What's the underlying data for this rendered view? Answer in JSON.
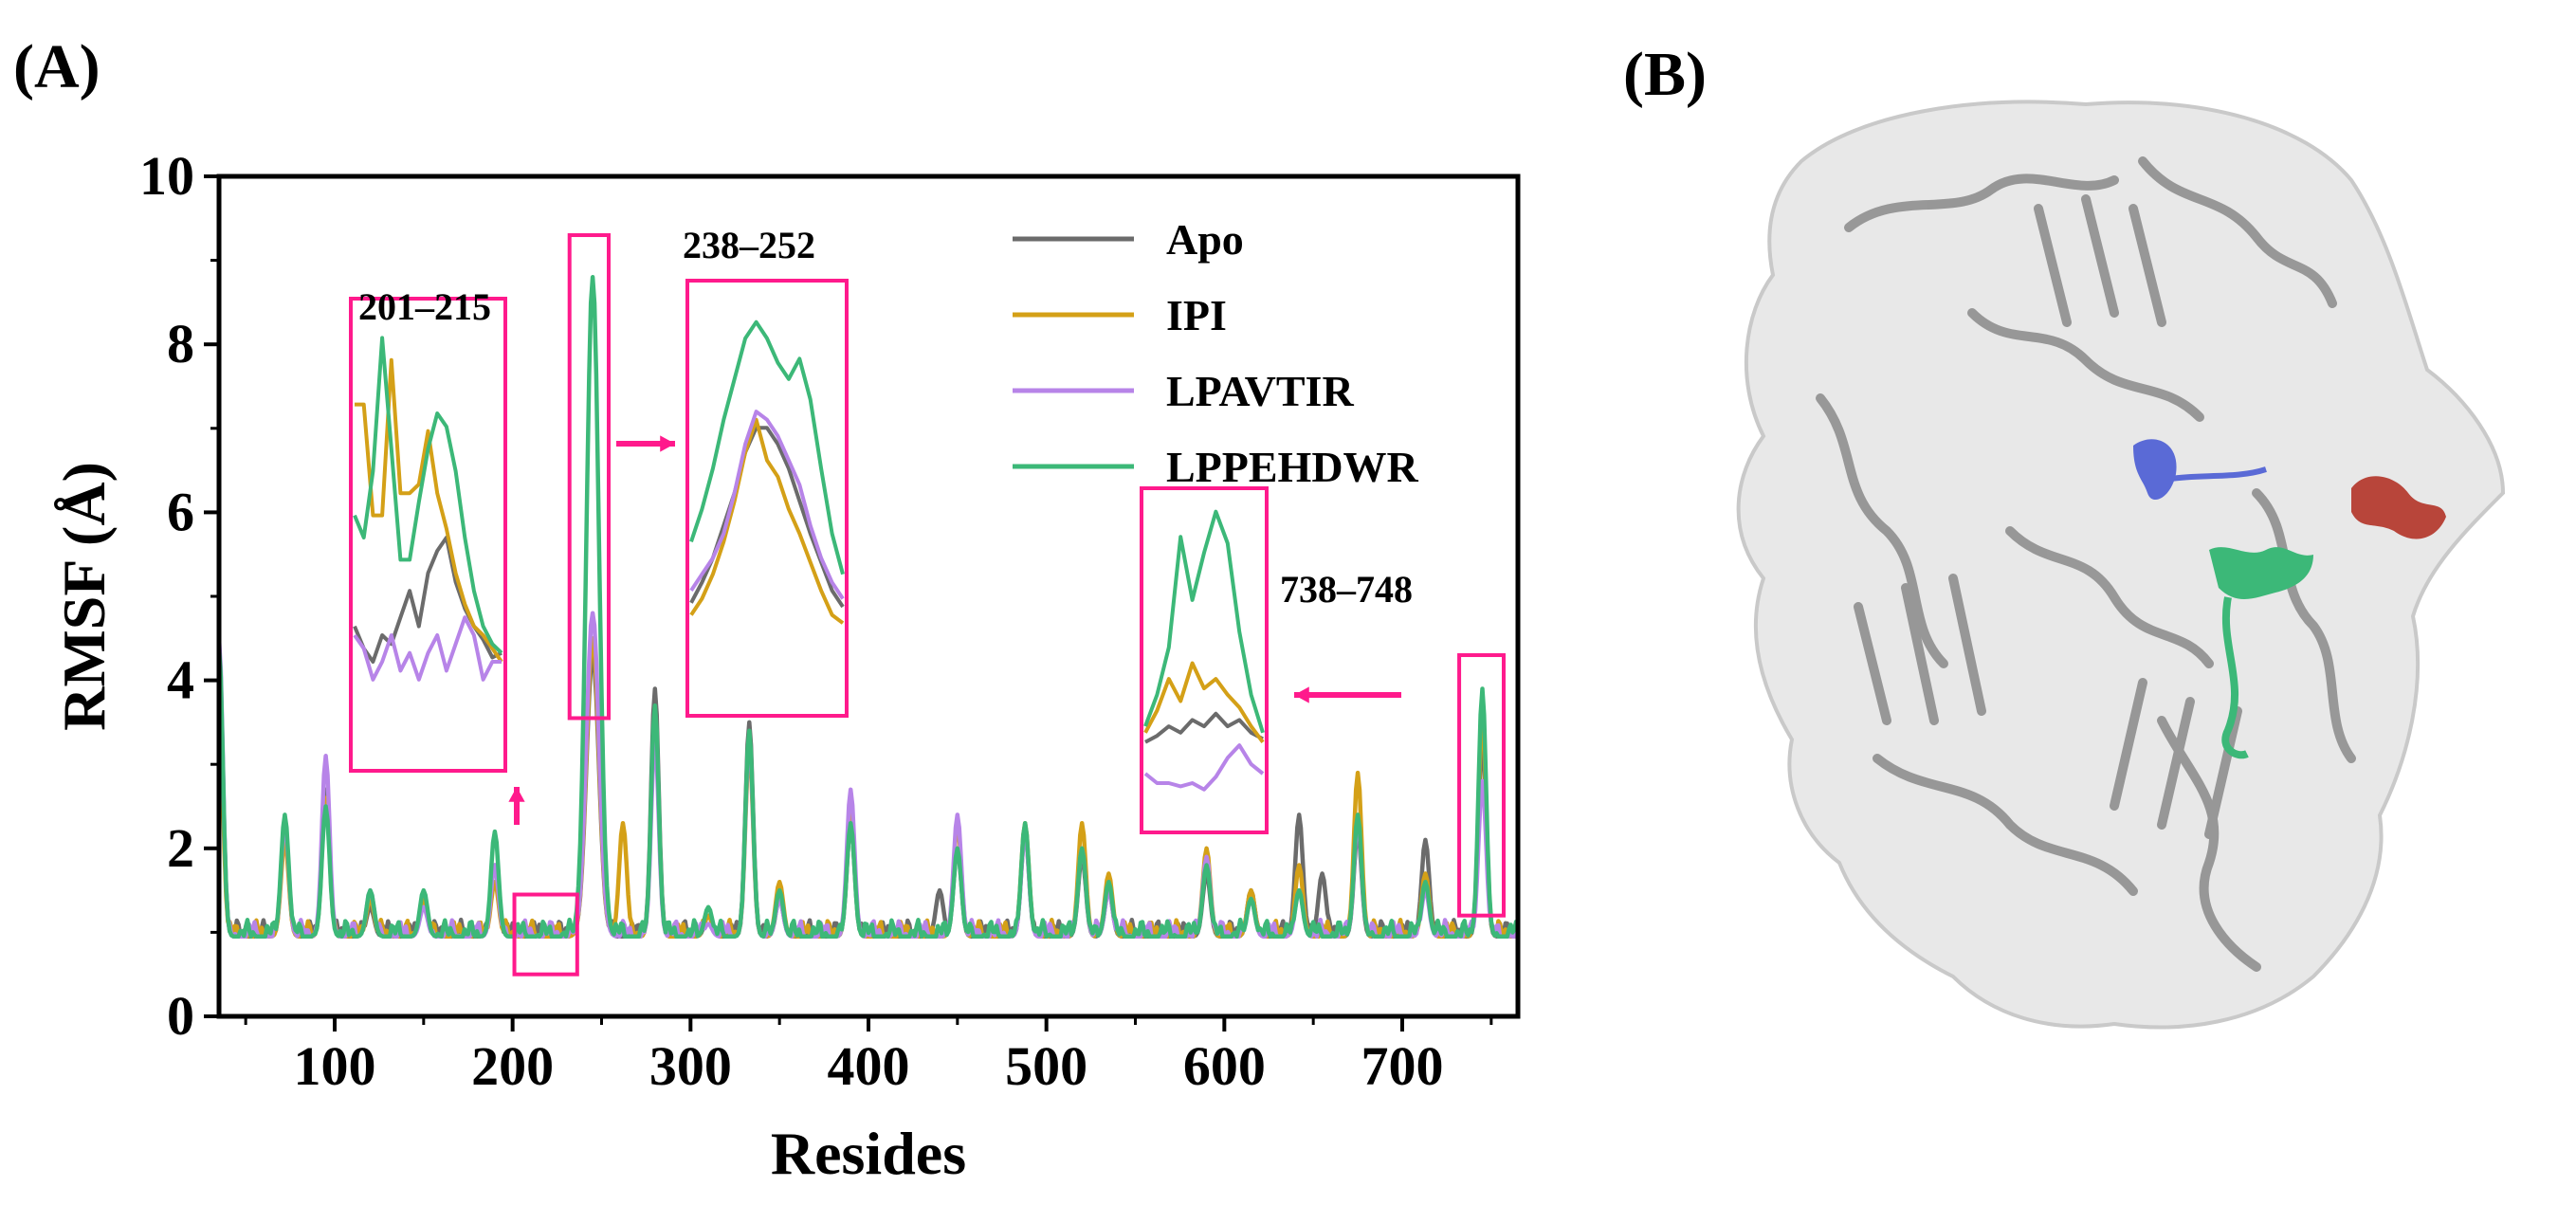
{
  "panels": {
    "a_label": "(A)",
    "b_label": "(B)"
  },
  "colors": {
    "Apo": "#6b6b6b",
    "IPI": "#d4a017",
    "LPAVTIR": "#b784e8",
    "LPPEHDWR": "#3cb878",
    "highlight": "#ff1a8c",
    "protein_region_blue": "#5a6ad6",
    "protein_region_green": "#3cb878",
    "protein_region_red": "#b8453a"
  },
  "chart_data": {
    "type": "line",
    "title": "",
    "xlabel": "Resides",
    "ylabel": "RMSF (Å)",
    "xlim": [
      35,
      765
    ],
    "ylim": [
      0,
      10
    ],
    "xticks": [
      100,
      200,
      300,
      400,
      500,
      600,
      700
    ],
    "yticks": [
      0,
      2,
      4,
      6,
      8,
      10
    ],
    "legend_position": "top-right",
    "series": [
      {
        "name": "Apo",
        "peaks": [
          [
            35,
            4.3
          ],
          [
            72,
            2.2
          ],
          [
            95,
            2.7
          ],
          [
            120,
            1.3
          ],
          [
            150,
            1.4
          ],
          [
            190,
            1.8
          ],
          [
            245,
            4.3
          ],
          [
            280,
            3.9
          ],
          [
            310,
            1.2
          ],
          [
            333,
            3.5
          ],
          [
            350,
            1.4
          ],
          [
            390,
            2.3
          ],
          [
            440,
            1.5
          ],
          [
            450,
            2.0
          ],
          [
            488,
            2.2
          ],
          [
            520,
            1.9
          ],
          [
            535,
            1.5
          ],
          [
            590,
            1.7
          ],
          [
            615,
            1.5
          ],
          [
            642,
            2.4
          ],
          [
            655,
            1.7
          ],
          [
            675,
            2.2
          ],
          [
            713,
            2.1
          ],
          [
            745,
            3.3
          ]
        ]
      },
      {
        "name": "IPI",
        "peaks": [
          [
            35,
            3.8
          ],
          [
            72,
            2.1
          ],
          [
            95,
            2.6
          ],
          [
            120,
            1.4
          ],
          [
            150,
            1.4
          ],
          [
            190,
            1.6
          ],
          [
            245,
            4.5
          ],
          [
            262,
            2.3
          ],
          [
            280,
            3.5
          ],
          [
            310,
            1.2
          ],
          [
            333,
            3.2
          ],
          [
            350,
            1.6
          ],
          [
            390,
            2.5
          ],
          [
            450,
            2.3
          ],
          [
            488,
            2.3
          ],
          [
            520,
            2.3
          ],
          [
            535,
            1.7
          ],
          [
            590,
            2.0
          ],
          [
            615,
            1.5
          ],
          [
            642,
            1.8
          ],
          [
            675,
            2.9
          ],
          [
            713,
            1.7
          ],
          [
            745,
            3.6
          ]
        ]
      },
      {
        "name": "LPAVTIR",
        "peaks": [
          [
            35,
            4.5
          ],
          [
            72,
            2.3
          ],
          [
            95,
            3.1
          ],
          [
            120,
            1.5
          ],
          [
            150,
            1.3
          ],
          [
            190,
            1.8
          ],
          [
            245,
            4.8
          ],
          [
            280,
            3.3
          ],
          [
            310,
            1.1
          ],
          [
            333,
            3.3
          ],
          [
            350,
            1.4
          ],
          [
            390,
            2.7
          ],
          [
            450,
            2.4
          ],
          [
            488,
            2.2
          ],
          [
            520,
            2.0
          ],
          [
            535,
            1.5
          ],
          [
            590,
            1.9
          ],
          [
            615,
            1.4
          ],
          [
            642,
            1.5
          ],
          [
            675,
            2.3
          ],
          [
            713,
            1.5
          ],
          [
            745,
            2.8
          ]
        ]
      },
      {
        "name": "LPPEHDWR",
        "peaks": [
          [
            35,
            4.4
          ],
          [
            72,
            2.4
          ],
          [
            95,
            2.5
          ],
          [
            120,
            1.5
          ],
          [
            150,
            1.5
          ],
          [
            190,
            2.2
          ],
          [
            245,
            8.8
          ],
          [
            280,
            3.7
          ],
          [
            310,
            1.3
          ],
          [
            333,
            3.4
          ],
          [
            350,
            1.5
          ],
          [
            390,
            2.3
          ],
          [
            450,
            2.0
          ],
          [
            488,
            2.3
          ],
          [
            520,
            2.0
          ],
          [
            535,
            1.6
          ],
          [
            590,
            1.8
          ],
          [
            615,
            1.4
          ],
          [
            642,
            1.5
          ],
          [
            675,
            2.4
          ],
          [
            713,
            1.6
          ],
          [
            745,
            3.9
          ]
        ]
      }
    ],
    "annotations": [
      {
        "id": "r201",
        "label": "201–215",
        "range": [
          201,
          215
        ]
      },
      {
        "id": "r238",
        "label": "238–252",
        "range": [
          238,
          252
        ]
      },
      {
        "id": "r738",
        "label": "738–748",
        "range": [
          738,
          748
        ]
      }
    ],
    "insets": {
      "r201": {
        "Apo": [
          0.3,
          0.25,
          0.22,
          0.28,
          0.26,
          0.32,
          0.38,
          0.3,
          0.42,
          0.47,
          0.5,
          0.4,
          0.34,
          0.3,
          0.27,
          0.23,
          0.24
        ],
        "IPI": [
          0.8,
          0.8,
          0.55,
          0.55,
          0.9,
          0.6,
          0.6,
          0.62,
          0.74,
          0.6,
          0.52,
          0.42,
          0.35,
          0.3,
          0.28,
          0.25,
          0.22
        ],
        "LPAVTIR": [
          0.28,
          0.25,
          0.18,
          0.22,
          0.28,
          0.2,
          0.24,
          0.18,
          0.24,
          0.28,
          0.2,
          0.26,
          0.32,
          0.28,
          0.18,
          0.22,
          0.22
        ],
        "LPPEHDWR": [
          0.55,
          0.5,
          0.65,
          0.95,
          0.7,
          0.45,
          0.45,
          0.58,
          0.7,
          0.78,
          0.75,
          0.65,
          0.5,
          0.38,
          0.3,
          0.26,
          0.24
        ]
      },
      "r238": {
        "Apo": [
          0.25,
          0.3,
          0.36,
          0.44,
          0.52,
          0.62,
          0.68,
          0.68,
          0.64,
          0.58,
          0.5,
          0.42,
          0.35,
          0.28,
          0.24
        ],
        "IPI": [
          0.22,
          0.26,
          0.32,
          0.4,
          0.5,
          0.62,
          0.7,
          0.6,
          0.56,
          0.48,
          0.42,
          0.35,
          0.28,
          0.22,
          0.2
        ],
        "LPAVTIR": [
          0.28,
          0.32,
          0.36,
          0.42,
          0.52,
          0.64,
          0.72,
          0.7,
          0.66,
          0.6,
          0.54,
          0.44,
          0.36,
          0.3,
          0.26
        ],
        "LPPEHDWR": [
          0.4,
          0.48,
          0.58,
          0.7,
          0.8,
          0.9,
          0.94,
          0.9,
          0.84,
          0.8,
          0.85,
          0.75,
          0.58,
          0.42,
          0.32
        ]
      },
      "r738": {
        "Apo": [
          0.25,
          0.27,
          0.3,
          0.28,
          0.32,
          0.3,
          0.34,
          0.3,
          0.32,
          0.28,
          0.26
        ],
        "IPI": [
          0.28,
          0.35,
          0.45,
          0.38,
          0.5,
          0.42,
          0.45,
          0.4,
          0.36,
          0.3,
          0.25
        ],
        "LPAVTIR": [
          0.15,
          0.12,
          0.12,
          0.11,
          0.12,
          0.1,
          0.14,
          0.2,
          0.24,
          0.18,
          0.15
        ],
        "LPPEHDWR": [
          0.3,
          0.4,
          0.55,
          0.9,
          0.7,
          0.85,
          0.98,
          0.88,
          0.6,
          0.4,
          0.28
        ]
      }
    }
  }
}
